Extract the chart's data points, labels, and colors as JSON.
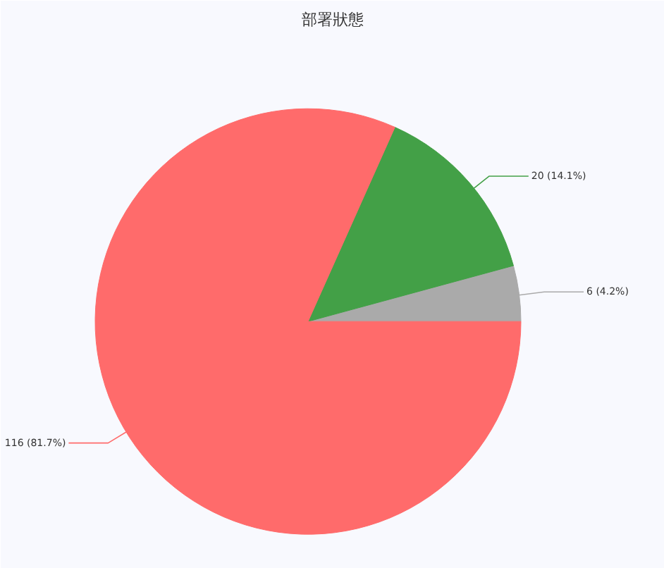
{
  "chart_data": {
    "type": "pie",
    "title": "部署狀態",
    "categories": [
      null,
      null,
      null
    ],
    "values": [
      6,
      20,
      116
    ],
    "colors": [
      "#aaaaaa",
      "#43a047",
      "#ff6b6b"
    ],
    "value_labels": [
      "6 (4.2%)",
      "20 (14.1%)",
      "116 (81.7%)"
    ]
  }
}
